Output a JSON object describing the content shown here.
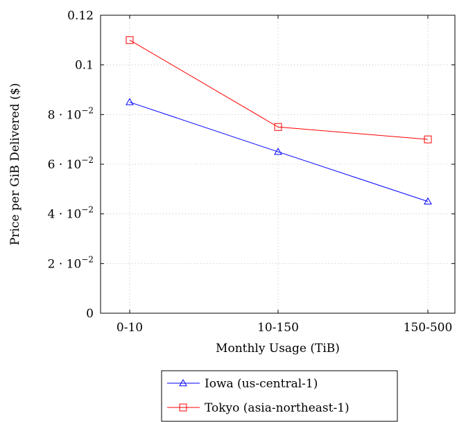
{
  "chart_data": {
    "type": "line",
    "categories": [
      "0-10",
      "10-150",
      "150-500"
    ],
    "xlabel": "Monthly Usage (TiB)",
    "ylabel": "Price per GiB Delivered ($)",
    "ylim": [
      0,
      0.12
    ],
    "yticks": [
      {
        "value": 0,
        "base": "0",
        "exp": ""
      },
      {
        "value": 0.02,
        "base": "2 · 10",
        "exp": "−2"
      },
      {
        "value": 0.04,
        "base": "4 · 10",
        "exp": "−2"
      },
      {
        "value": 0.06,
        "base": "6 · 10",
        "exp": "−2"
      },
      {
        "value": 0.08,
        "base": "8 · 10",
        "exp": "−2"
      },
      {
        "value": 0.1,
        "base": "0.1",
        "exp": ""
      },
      {
        "value": 0.12,
        "base": "0.12",
        "exp": ""
      }
    ],
    "grid": true,
    "legend_position": "below",
    "series": [
      {
        "name": "Iowa (us-central-1)",
        "values": [
          0.085,
          0.065,
          0.045
        ],
        "color": "#0000ff",
        "marker": "triangle"
      },
      {
        "name": "Tokyo (asia-northeast-1)",
        "values": [
          0.11,
          0.075,
          0.07
        ],
        "color": "#ff0000",
        "marker": "square"
      }
    ]
  }
}
